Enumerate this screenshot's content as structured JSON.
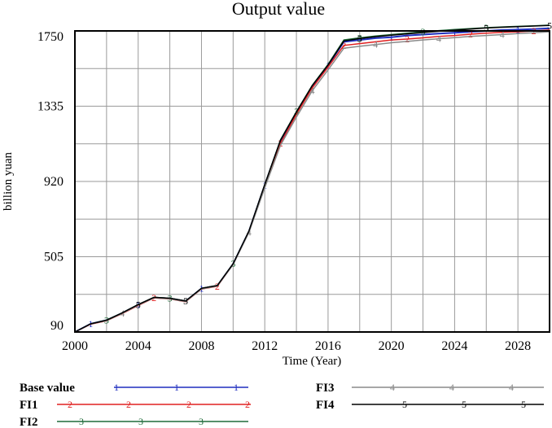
{
  "chart_data": {
    "type": "line",
    "title": "Output value",
    "xlabel": "Time (Year)",
    "ylabel": "billion yuan",
    "xlim": [
      2000,
      2030
    ],
    "ylim": [
      90,
      1750
    ],
    "x_ticks": [
      "2000",
      "2004",
      "2008",
      "2012",
      "2016",
      "2020",
      "2024",
      "2028"
    ],
    "y_ticks": [
      "1750",
      "1335",
      "920",
      "505",
      "90"
    ],
    "grid": true,
    "legend_position": "bottom",
    "x": [
      2000,
      2001,
      2002,
      2003,
      2004,
      2005,
      2006,
      2007,
      2008,
      2009,
      2010,
      2011,
      2012,
      2013,
      2014,
      2015,
      2016,
      2017,
      2018,
      2019,
      2020,
      2021,
      2022,
      2023,
      2024,
      2025,
      2026,
      2027,
      2028,
      2029,
      2030
    ],
    "series": [
      {
        "name": "Base value",
        "marker": "1",
        "color": "#1f2fbf",
        "values": [
          90,
          135,
          155,
          195,
          240,
          280,
          275,
          260,
          330,
          345,
          465,
          645,
          900,
          1145,
          1300,
          1445,
          1560,
          1690,
          1700,
          1710,
          1715,
          1725,
          1730,
          1735,
          1740,
          1745,
          1750,
          1755,
          1757,
          1760,
          1765
        ]
      },
      {
        "name": "FI1",
        "marker": "2",
        "color": "#e02020",
        "values": [
          90,
          133,
          152,
          192,
          236,
          278,
          272,
          257,
          327,
          342,
          463,
          643,
          895,
          1130,
          1290,
          1435,
          1550,
          1670,
          1680,
          1690,
          1700,
          1705,
          1712,
          1720,
          1725,
          1732,
          1738,
          1742,
          1745,
          1750,
          1755
        ]
      },
      {
        "name": "FI2",
        "marker": "3",
        "color": "#1f6b3a",
        "values": [
          90,
          135,
          156,
          196,
          241,
          281,
          276,
          261,
          331,
          346,
          466,
          646,
          902,
          1150,
          1305,
          1450,
          1565,
          1700,
          1712,
          1722,
          1730,
          1738,
          1745,
          1752,
          1758,
          1763,
          1768,
          1772,
          1775,
          1778,
          1782
        ]
      },
      {
        "name": "FI3",
        "marker": "4",
        "color": "#8a8a8a",
        "values": [
          90,
          134,
          153,
          193,
          238,
          279,
          273,
          258,
          328,
          343,
          462,
          640,
          885,
          1120,
          1275,
          1420,
          1535,
          1655,
          1665,
          1675,
          1685,
          1692,
          1700,
          1707,
          1713,
          1720,
          1725,
          1730,
          1735,
          1740,
          1745
        ]
      },
      {
        "name": "FI4",
        "marker": "5",
        "color": "#000000",
        "values": [
          90,
          135,
          155,
          196,
          241,
          281,
          276,
          261,
          331,
          346,
          466,
          647,
          903,
          1148,
          1303,
          1448,
          1562,
          1695,
          1708,
          1718,
          1726,
          1734,
          1741,
          1748,
          1754,
          1760,
          1766,
          1770,
          1774,
          1777,
          1780
        ]
      }
    ]
  }
}
